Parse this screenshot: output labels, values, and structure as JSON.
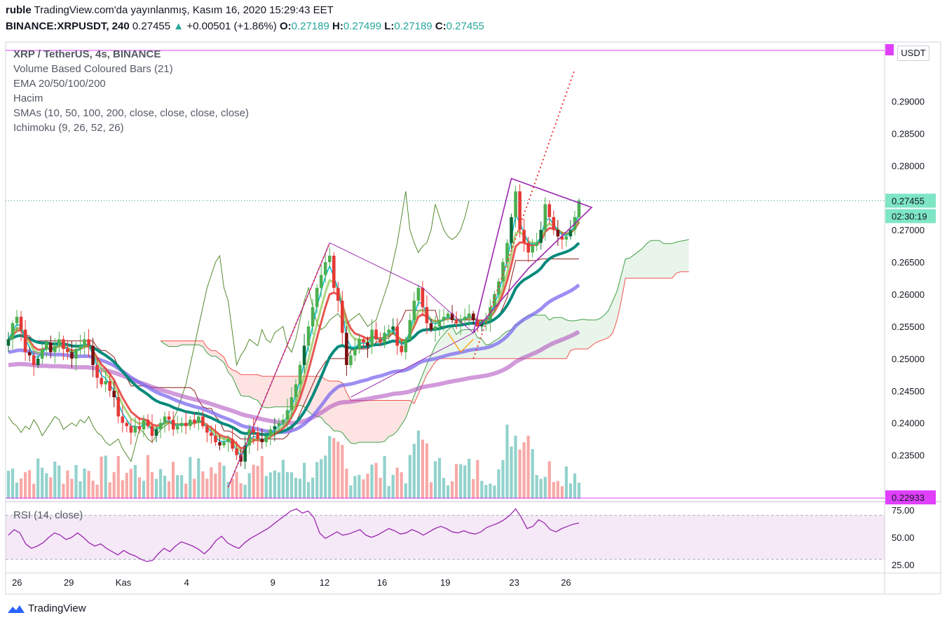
{
  "header": {
    "line1_user": "ruble",
    "line1_rest": " TradingView.com'da yayınlanmış, Kasım 16, 2020 15:29:43 EET",
    "symbol": "BINANCE:XRPUSDT, 240",
    "last": "0.27455",
    "change": "+0.00501 (+1.86%)",
    "o_label": "O:",
    "o": "0.27189",
    "h_label": "H:",
    "h": "0.27499",
    "l_label": "L:",
    "l": "0.27189",
    "c_label": "C:",
    "c": "0.27455"
  },
  "legend": [
    "XRP / TetherUS, 4s, BINANCE",
    "Volume Based Coloured Bars (21)",
    "EMA 20/50/100/200",
    "Hacim",
    "SMAs (10, 50, 100, 200, close, close, close, close)",
    "Ichimoku (9, 26, 52, 26)"
  ],
  "currency_button": "USDT",
  "rsi_label": "RSI (14, close)",
  "brand": "TradingView",
  "price_tags": {
    "current": "0.27455",
    "countdown": "02:30:19",
    "low_line": "0.22933",
    "top_line": "0.29800"
  },
  "colors": {
    "up": "#26a69a",
    "down": "#ef5350",
    "ema20": "#00bcd4",
    "ema50": "#e53935",
    "ema100": "#00897b",
    "ema200": "#9575cd",
    "sma_green": "#8bc34a",
    "sma_purple": "#ab47bc",
    "sma_blue": "#7b68ee",
    "pattern": "#9c27b0",
    "rsi": "#9c27b0",
    "hline": "#e040fb"
  },
  "chart_data": {
    "type": "candlestick",
    "title": "XRP / TetherUS, 4s, BINANCE",
    "ylim": [
      0.2282,
      0.299
    ],
    "y_ticks": [
      "0.29000",
      "0.28500",
      "0.28000",
      "0.27500",
      "0.27000",
      "0.26500",
      "0.26000",
      "0.25500",
      "0.25000",
      "0.24500",
      "0.24000",
      "0.23500"
    ],
    "y_tick_values": [
      0.29,
      0.285,
      0.28,
      0.275,
      0.27,
      0.265,
      0.26,
      0.255,
      0.25,
      0.245,
      0.24,
      0.235
    ],
    "x_ticks": [
      "26",
      "29",
      "Kas",
      "4",
      "9",
      "12",
      "16",
      "19",
      "23",
      "26"
    ],
    "x_tick_index": [
      3,
      21,
      40,
      62,
      92,
      110,
      130,
      152,
      176,
      194
    ],
    "bars_count": 136,
    "closes": [
      0.253,
      0.2555,
      0.2565,
      0.2545,
      0.251,
      0.2505,
      0.249,
      0.25,
      0.2515,
      0.2525,
      0.251,
      0.252,
      0.253,
      0.2515,
      0.251,
      0.25,
      0.2515,
      0.252,
      0.253,
      0.252,
      0.249,
      0.247,
      0.246,
      0.2465,
      0.245,
      0.244,
      0.241,
      0.24,
      0.2395,
      0.2385,
      0.2395,
      0.239,
      0.2405,
      0.2395,
      0.238,
      0.239,
      0.24,
      0.241,
      0.2405,
      0.239,
      0.2395,
      0.24,
      0.2395,
      0.2405,
      0.24,
      0.241,
      0.2395,
      0.2385,
      0.238,
      0.237,
      0.2365,
      0.237,
      0.2375,
      0.236,
      0.235,
      0.234,
      0.2365,
      0.239,
      0.2385,
      0.2375,
      0.237,
      0.238,
      0.239,
      0.2395,
      0.24,
      0.2405,
      0.242,
      0.244,
      0.246,
      0.249,
      0.252,
      0.255,
      0.258,
      0.261,
      0.263,
      0.265,
      0.266,
      0.261,
      0.259,
      0.254,
      0.249,
      0.2505,
      0.2515,
      0.253,
      0.2525,
      0.252,
      0.2545,
      0.253,
      0.2525,
      0.254,
      0.2545,
      0.255,
      0.252,
      0.251,
      0.253,
      0.256,
      0.259,
      0.261,
      0.258,
      0.2555,
      0.2545,
      0.255,
      0.256,
      0.2565,
      0.257,
      0.256,
      0.2555,
      0.256,
      0.2565,
      0.257,
      0.256,
      0.255,
      0.2555,
      0.256,
      0.258,
      0.26,
      0.262,
      0.265,
      0.268,
      0.272,
      0.276,
      0.27,
      0.268,
      0.2665,
      0.2675,
      0.268,
      0.27,
      0.274,
      0.272,
      0.27,
      0.269,
      0.2685,
      0.269,
      0.27,
      0.272,
      0.27455
    ],
    "volume_scale": "relative",
    "rsi": {
      "levels": [
        75,
        50,
        25
      ],
      "tick_labels": [
        "75.00",
        "50.00",
        "25.00"
      ],
      "ylim": [
        20,
        80
      ],
      "values": [
        52,
        57,
        54,
        44,
        40,
        42,
        45,
        50,
        54,
        52,
        48,
        50,
        54,
        50,
        45,
        42,
        44,
        40,
        37,
        34,
        38,
        35,
        33,
        30,
        28,
        29,
        35,
        40,
        37,
        42,
        46,
        44,
        42,
        39,
        35,
        40,
        47,
        51,
        45,
        42,
        40,
        45,
        49,
        52,
        55,
        58,
        62,
        66,
        70,
        74,
        76,
        72,
        74,
        68,
        54,
        49,
        52,
        55,
        52,
        53,
        55,
        57,
        52,
        50,
        52,
        55,
        58,
        56,
        53,
        54,
        57,
        55,
        52,
        55,
        58,
        60,
        58,
        55,
        54,
        56,
        54,
        53,
        55,
        59,
        61,
        63,
        66,
        70,
        76,
        68,
        58,
        60,
        66,
        63,
        57,
        55,
        58,
        60,
        62,
        63
      ]
    }
  }
}
